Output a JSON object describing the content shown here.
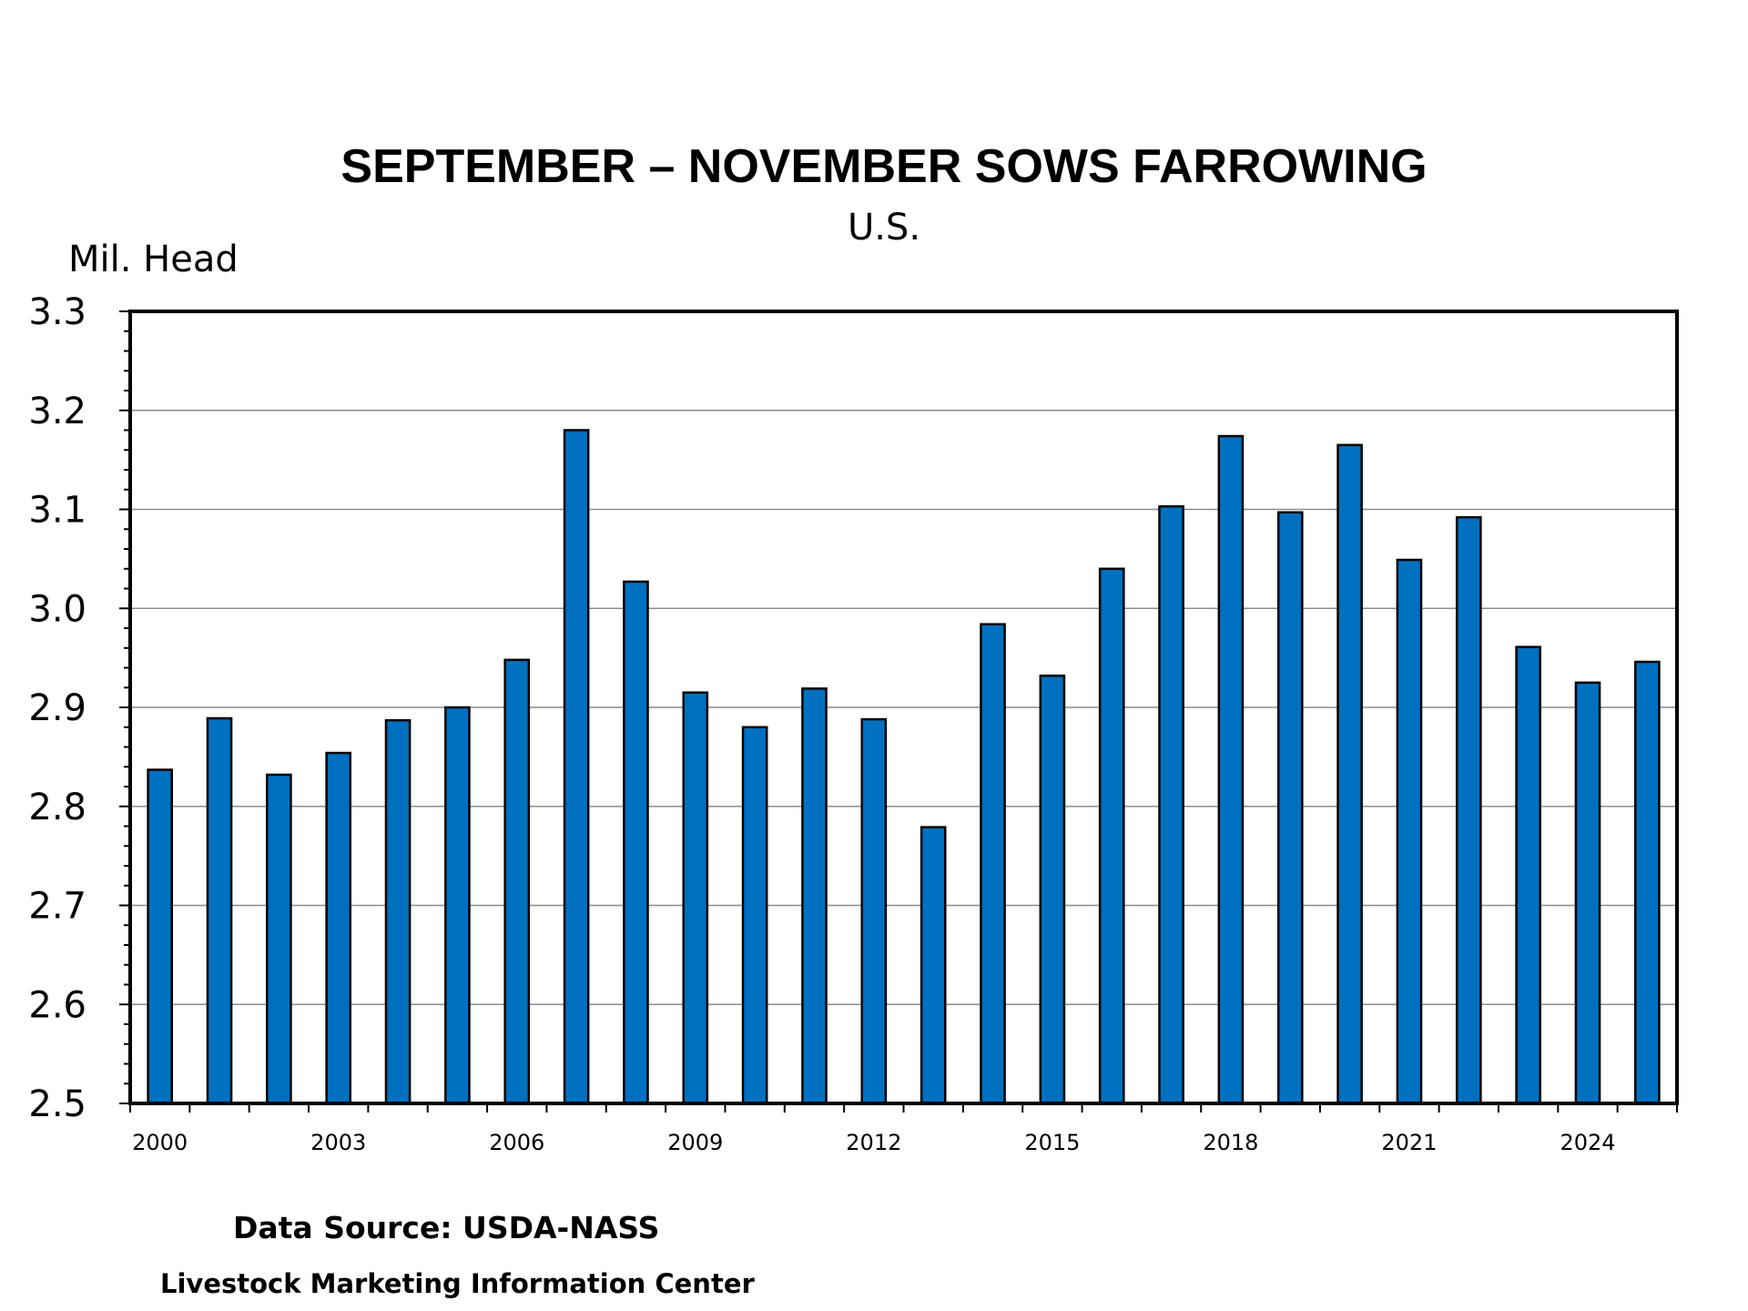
{
  "chart_data": {
    "type": "bar",
    "title": "SEPTEMBER – NOVEMBER SOWS FARROWING",
    "subtitle": "U.S.",
    "ylabel": "Mil. Head",
    "xlabel": "",
    "ylim": [
      2.5,
      3.3
    ],
    "ytick_labels": [
      "2.5",
      "2.6",
      "2.7",
      "2.8",
      "2.9",
      "3.0",
      "3.1",
      "3.2",
      "3.3"
    ],
    "ytick_values": [
      2.5,
      2.6,
      2.7,
      2.8,
      2.9,
      3.0,
      3.1,
      3.2,
      3.3
    ],
    "categories": [
      "2000",
      "2001",
      "2002",
      "2003",
      "2004",
      "2005",
      "2006",
      "2007",
      "2008",
      "2009",
      "2010",
      "2011",
      "2012",
      "2013",
      "2014",
      "2015",
      "2016",
      "2017",
      "2018",
      "2019",
      "2020",
      "2021",
      "2022",
      "2023",
      "2024",
      "2025"
    ],
    "xtick_labels": [
      "2000",
      "2003",
      "2006",
      "2009",
      "2012",
      "2015",
      "2018",
      "2021",
      "2024"
    ],
    "values": [
      2.837,
      2.889,
      2.832,
      2.854,
      2.887,
      2.9,
      2.948,
      3.18,
      3.027,
      2.915,
      2.88,
      2.919,
      2.888,
      2.779,
      2.984,
      2.932,
      3.04,
      3.103,
      3.174,
      3.097,
      3.165,
      3.049,
      3.092,
      2.961,
      2.925,
      2.946
    ],
    "grid": true,
    "legend": "none",
    "bar_color": "#0070C0"
  },
  "footer": {
    "source": "Data Source:  USDA-NASS",
    "credit": "Livestock Marketing Information Center"
  }
}
